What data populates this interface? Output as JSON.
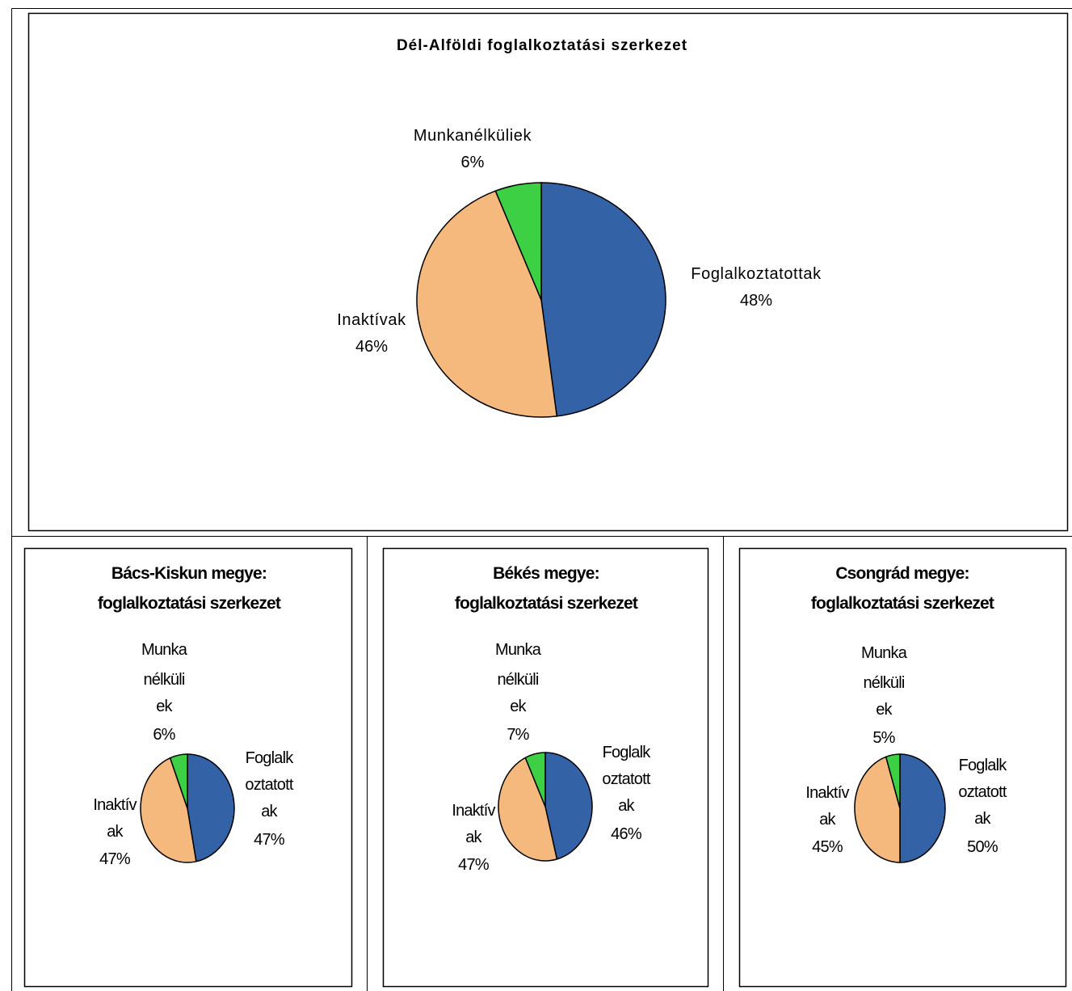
{
  "colors": {
    "foglalkoztatottak": "#3362A6",
    "inaktivak": "#F5B97E",
    "munkanelkuliek": "#3DCF44",
    "outline": "#000000"
  },
  "chart_data": [
    {
      "type": "pie",
      "title": "Dél-Alföldi foglalkoztatási szerkezet",
      "slices": [
        {
          "name": "Foglalkoztatottak",
          "value": 48,
          "label": "48%",
          "color": "#3362A6"
        },
        {
          "name": "Inaktívak",
          "value": 46,
          "label": "46%",
          "color": "#F5B97E"
        },
        {
          "name": "Munkanélküliek",
          "value": 6,
          "label": "6%",
          "color": "#3DCF44"
        }
      ]
    },
    {
      "type": "pie",
      "title": [
        "Bács-Kiskun megye:",
        "foglalkoztatási szerkezet"
      ],
      "slices": [
        {
          "name": [
            "Foglalk",
            "oztatott",
            "ak"
          ],
          "value": 47,
          "label": "47%",
          "color": "#3362A6"
        },
        {
          "name": [
            "Inaktív",
            "ak"
          ],
          "value": 47,
          "label": "47%",
          "color": "#F5B97E"
        },
        {
          "name": [
            "Munka",
            "nélküli",
            "ek"
          ],
          "value": 6,
          "label": "6%",
          "color": "#3DCF44"
        }
      ]
    },
    {
      "type": "pie",
      "title": [
        "Békés megye:",
        "foglalkoztatási szerkezet"
      ],
      "slices": [
        {
          "name": [
            "Foglalk",
            "oztatott",
            "ak"
          ],
          "value": 46,
          "label": "46%",
          "color": "#3362A6"
        },
        {
          "name": [
            "Inaktív",
            "ak"
          ],
          "value": 47,
          "label": "47%",
          "color": "#F5B97E"
        },
        {
          "name": [
            "Munka",
            "nélküli",
            "ek"
          ],
          "value": 7,
          "label": "7%",
          "color": "#3DCF44"
        }
      ]
    },
    {
      "type": "pie",
      "title": [
        "Csongrád megye:",
        "foglalkoztatási szerkezet"
      ],
      "slices": [
        {
          "name": [
            "Foglalk",
            "oztatott",
            "ak"
          ],
          "value": 50,
          "label": "50%",
          "color": "#3362A6"
        },
        {
          "name": [
            "Inaktív",
            "ak"
          ],
          "value": 45,
          "label": "45%",
          "color": "#F5B97E"
        },
        {
          "name": [
            "Munka",
            "nélküli",
            "ek"
          ],
          "value": 5,
          "label": "5%",
          "color": "#3DCF44"
        }
      ]
    }
  ]
}
